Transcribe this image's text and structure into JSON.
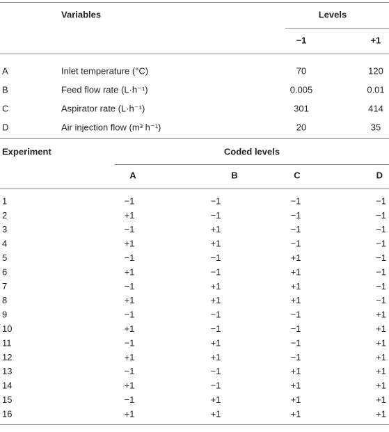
{
  "levels_table": {
    "header": {
      "variables": "Variables",
      "levels": "Levels",
      "low": "−1",
      "high": "+1"
    },
    "rows": [
      [
        "A",
        "Inlet temperature (°C)",
        "70",
        "120"
      ],
      [
        "B",
        "Feed flow rate (L·h⁻¹)",
        "0.005",
        "0.01"
      ],
      [
        "C",
        "Aspirator rate (L·h⁻¹)",
        "301",
        "414"
      ],
      [
        "D",
        "Air injection flow (m³ h⁻¹)",
        "20",
        "35"
      ]
    ]
  },
  "experiments_table": {
    "header": {
      "experiment": "Experiment",
      "coded_levels": "Coded levels",
      "factors": [
        "A",
        "B",
        "C",
        "D"
      ]
    },
    "rows": [
      [
        "1",
        "−1",
        "−1",
        "−1",
        "−1"
      ],
      [
        "2",
        "+1",
        "−1",
        "−1",
        "−1"
      ],
      [
        "3",
        "−1",
        "+1",
        "−1",
        "−1"
      ],
      [
        "4",
        "+1",
        "+1",
        "−1",
        "−1"
      ],
      [
        "5",
        "−1",
        "−1",
        "+1",
        "−1"
      ],
      [
        "6",
        "+1",
        "−1",
        "+1",
        "−1"
      ],
      [
        "7",
        "−1",
        "+1",
        "+1",
        "−1"
      ],
      [
        "8",
        "+1",
        "+1",
        "+1",
        "−1"
      ],
      [
        "9",
        "−1",
        "−1",
        "−1",
        "+1"
      ],
      [
        "10",
        "+1",
        "−1",
        "−1",
        "+1"
      ],
      [
        "11",
        "−1",
        "+1",
        "−1",
        "+1"
      ],
      [
        "12",
        "+1",
        "+1",
        "−1",
        "+1"
      ],
      [
        "13",
        "−1",
        "−1",
        "+1",
        "+1"
      ],
      [
        "14",
        "+1",
        "−1",
        "+1",
        "+1"
      ],
      [
        "15",
        "−1",
        "+1",
        "+1",
        "+1"
      ],
      [
        "16",
        "+1",
        "+1",
        "+1",
        "+1"
      ]
    ]
  }
}
